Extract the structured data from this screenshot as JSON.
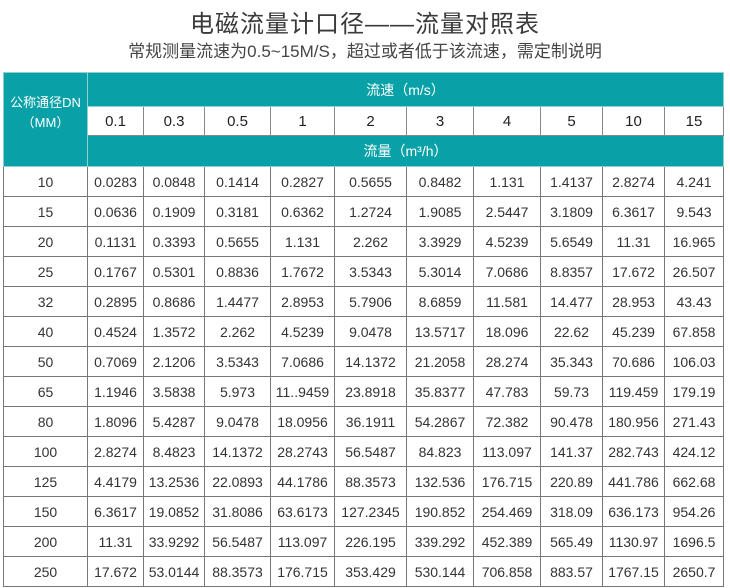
{
  "title": "电磁流量计口径——流量对照表",
  "subtitle": "常规测量流速为0.5~15M/S，超过或者低于该流速，需定制说明",
  "colors": {
    "accent": "#09a1a8"
  },
  "table": {
    "dn_header": "公称通径DN",
    "dn_unit": "（MM）",
    "speed_header": "流速（m/s）",
    "flow_header": "流量（m³/h）",
    "speeds": [
      "0.1",
      "0.3",
      "0.5",
      "1",
      "2",
      "3",
      "4",
      "5",
      "10",
      "15"
    ],
    "rows": [
      {
        "dn": "10",
        "values": [
          "0.0283",
          "0.0848",
          "0.1414",
          "0.2827",
          "0.5655",
          "0.8482",
          "1.131",
          "1.4137",
          "2.8274",
          "4.241"
        ]
      },
      {
        "dn": "15",
        "values": [
          "0.0636",
          "0.1909",
          "0.3181",
          "0.6362",
          "1.2724",
          "1.9085",
          "2.5447",
          "3.1809",
          "6.3617",
          "9.543"
        ]
      },
      {
        "dn": "20",
        "values": [
          "0.1131",
          "0.3393",
          "0.5655",
          "1.131",
          "2.262",
          "3.3929",
          "4.5239",
          "5.6549",
          "11.31",
          "16.965"
        ]
      },
      {
        "dn": "25",
        "values": [
          "0.1767",
          "0.5301",
          "0.8836",
          "1.7672",
          "3.5343",
          "5.3014",
          "7.0686",
          "8.8357",
          "17.672",
          "26.507"
        ]
      },
      {
        "dn": "32",
        "values": [
          "0.2895",
          "0.8686",
          "1.4477",
          "2.8953",
          "5.7906",
          "8.6859",
          "11.581",
          "14.477",
          "28.953",
          "43.43"
        ]
      },
      {
        "dn": "40",
        "values": [
          "0.4524",
          "1.3572",
          "2.262",
          "4.5239",
          "9.0478",
          "13.5717",
          "18.096",
          "22.62",
          "45.239",
          "67.858"
        ]
      },
      {
        "dn": "50",
        "values": [
          "0.7069",
          "2.1206",
          "3.5343",
          "7.0686",
          "14.1372",
          "21.2058",
          "28.274",
          "35.343",
          "70.686",
          "106.03"
        ]
      },
      {
        "dn": "65",
        "values": [
          "1.1946",
          "3.5838",
          "5.973",
          "11..9459",
          "23.8918",
          "35.8377",
          "47.783",
          "59.73",
          "119.459",
          "179.19"
        ]
      },
      {
        "dn": "80",
        "values": [
          "1.8096",
          "5.4287",
          "9.0478",
          "18.0956",
          "36.1911",
          "54.2867",
          "72.382",
          "90.478",
          "180.956",
          "271.43"
        ]
      },
      {
        "dn": "100",
        "values": [
          "2.8274",
          "8.4823",
          "14.1372",
          "28.2743",
          "56.5487",
          "84.823",
          "113.097",
          "141.37",
          "282.743",
          "424.12"
        ]
      },
      {
        "dn": "125",
        "values": [
          "4.4179",
          "13.2536",
          "22.0893",
          "44.1786",
          "88.3573",
          "132.536",
          "176.715",
          "220.89",
          "441.786",
          "662.68"
        ]
      },
      {
        "dn": "150",
        "values": [
          "6.3617",
          "19.0852",
          "31.8086",
          "63.6173",
          "127.2345",
          "190.852",
          "254.469",
          "318.09",
          "636.173",
          "954.26"
        ]
      },
      {
        "dn": "200",
        "values": [
          "11.31",
          "33.9292",
          "56.5487",
          "113.097",
          "226.195",
          "339.292",
          "452.389",
          "565.49",
          "1130.97",
          "1696.5"
        ]
      },
      {
        "dn": "250",
        "values": [
          "17.672",
          "53.0144",
          "88.3573",
          "176.715",
          "353.429",
          "530.144",
          "706.858",
          "883.57",
          "1767.15",
          "2650.7"
        ]
      }
    ]
  }
}
